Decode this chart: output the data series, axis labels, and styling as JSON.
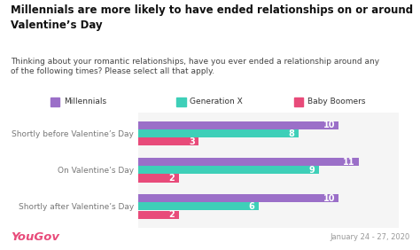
{
  "title": "Millennials are more likely to have ended relationships on or around\nValentine’s Day",
  "subtitle": "Thinking about your romantic relationships, have you ever ended a relationship around any\nof the following times? Please select all that apply.",
  "categories": [
    "Shortly before Valentine’s Day",
    "On Valentine’s Day",
    "Shortly after Valentine’s Day"
  ],
  "series": {
    "Millennials": [
      10,
      11,
      10
    ],
    "Generation X": [
      8,
      9,
      6
    ],
    "Baby Boomers": [
      3,
      2,
      2
    ]
  },
  "colors": {
    "Millennials": "#9b6fc8",
    "Generation X": "#3ecfb8",
    "Baby Boomers": "#e84b7a"
  },
  "bar_height": 0.22,
  "xlim": [
    0,
    13
  ],
  "title_fontsize": 8.5,
  "subtitle_fontsize": 6.5,
  "label_fontsize": 7,
  "tick_fontsize": 6.5,
  "legend_fontsize": 6.5,
  "title_bg_color": "#e8e8ee",
  "plot_bg_color": "#f5f5f5",
  "chart_bg_color": "#ffffff",
  "yougov_color": "#e84b7a",
  "date_text": "January 24 - 27, 2020",
  "date_color": "#999999",
  "bar_value_color": "#ffffff",
  "label_color": "#777777"
}
